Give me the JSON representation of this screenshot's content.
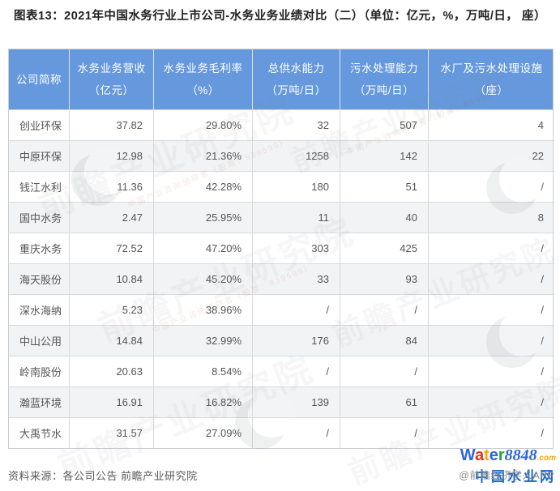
{
  "chart_data": {
    "type": "table",
    "title": "图表13：2021年中国水务行业上市公司-水务业务业绩对比（二）（单位：亿元，%，万吨/日， 座）",
    "columns": [
      {
        "line1": "公司简称",
        "line2": ""
      },
      {
        "line1": "水务业务营收",
        "line2": "（亿元）"
      },
      {
        "line1": "水务业务毛利率",
        "line2": "（%）"
      },
      {
        "line1": "总供水能力",
        "line2": "（万吨/日）"
      },
      {
        "line1": "污水处理能力",
        "line2": "（万吨/日）"
      },
      {
        "line1": "水厂及污水处理设施",
        "line2": "（座）"
      }
    ],
    "rows": [
      [
        "创业环保",
        "37.82",
        "29.80%",
        "32",
        "507",
        "4"
      ],
      [
        "中原环保",
        "12.98",
        "21.36%",
        "1258",
        "142",
        "22"
      ],
      [
        "钱江水利",
        "11.36",
        "42.28%",
        "180",
        "51",
        "/"
      ],
      [
        "国中水务",
        "2.47",
        "25.95%",
        "11",
        "40",
        "8"
      ],
      [
        "重庆水务",
        "72.52",
        "47.20%",
        "303",
        "425",
        "/"
      ],
      [
        "海天股份",
        "10.84",
        "45.20%",
        "33",
        "93",
        "/"
      ],
      [
        "深水海纳",
        "5.23",
        "38.96%",
        "/",
        "/",
        "/"
      ],
      [
        "中山公用",
        "14.84",
        "32.99%",
        "176",
        "84",
        "/"
      ],
      [
        "岭南股份",
        "20.63",
        "8.54%",
        "/",
        "/",
        "/"
      ],
      [
        "瀚蓝环境",
        "16.91",
        "16.82%",
        "139",
        "61",
        "/"
      ],
      [
        "大禹节水",
        "31.57",
        "27.09%",
        "/",
        "/",
        "/"
      ]
    ],
    "source": "资料来源：各公司公告 前瞻产业研究院"
  },
  "watermark": {
    "text": "前瞻产业研究院",
    "subtext": "中国产业咨询领导者（股票：839599）"
  },
  "footer_logo": {
    "brand_letters": [
      {
        "ch": "W",
        "color": "#2E66D9"
      },
      {
        "ch": "a",
        "color": "#E0301E"
      },
      {
        "ch": "t",
        "color": "#F2A602"
      },
      {
        "ch": "e",
        "color": "#2E66D9"
      },
      {
        "ch": "r",
        "color": "#27A02F"
      }
    ],
    "brand_number": "8848",
    "brand_tld": ".com",
    "site_name": "中国水业网",
    "credit": "@前瞻经济学人APP"
  },
  "colors": {
    "header_bg": "#6598DC",
    "header_text": "#ffffff",
    "row_alt": "#f2f3f5",
    "border": "#d9d9d9",
    "cell_text": "#555555",
    "title_text": "#222222",
    "source_text": "#595959",
    "site_blue": "#1A66CC",
    "credit_gray": "#8f8f8f"
  }
}
